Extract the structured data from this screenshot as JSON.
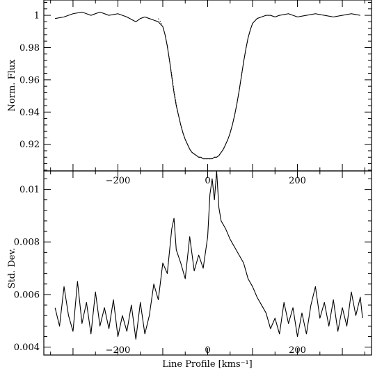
{
  "chart_data": [
    {
      "type": "line",
      "panel": "top",
      "ylabel": "Norm. Flux",
      "xlabel": "",
      "xlim": [
        -365,
        365
      ],
      "ylim": [
        0.9035,
        1.0095
      ],
      "x_ticks": [
        -200,
        0,
        200
      ],
      "x_tick_labels": [
        "−200",
        "0",
        "200"
      ],
      "y_ticks": [
        0.92,
        0.94,
        0.96,
        0.98,
        1.0
      ],
      "y_tick_labels": [
        "0.92",
        "0.94",
        "0.96",
        "0.98",
        "1"
      ],
      "grid": false,
      "legend": "none",
      "series": [
        {
          "style": "solid",
          "x": [
            -340,
            -320,
            -300,
            -280,
            -260,
            -240,
            -220,
            -200,
            -180,
            -160,
            -150,
            -140,
            -130,
            -120,
            -110,
            -100,
            -95,
            -90,
            -85,
            -80,
            -75,
            -70,
            -65,
            -60,
            -55,
            -50,
            -45,
            -40,
            -35,
            -30,
            -25,
            -20,
            -15,
            -10,
            -5,
            0,
            5,
            10,
            15,
            20,
            25,
            30,
            35,
            40,
            45,
            50,
            55,
            60,
            65,
            70,
            75,
            80,
            85,
            90,
            95,
            100,
            110,
            120,
            130,
            140,
            150,
            160,
            180,
            200,
            220,
            240,
            260,
            280,
            300,
            320,
            340
          ],
          "y": [
            0.998,
            0.999,
            1.001,
            1.002,
            1.0,
            1.002,
            1.0,
            1.001,
            0.999,
            0.996,
            0.998,
            0.999,
            0.998,
            0.997,
            0.996,
            0.993,
            0.988,
            0.981,
            0.972,
            0.962,
            0.952,
            0.944,
            0.938,
            0.932,
            0.927,
            0.923,
            0.92,
            0.917,
            0.915,
            0.914,
            0.913,
            0.912,
            0.912,
            0.911,
            0.911,
            0.911,
            0.911,
            0.911,
            0.912,
            0.912,
            0.913,
            0.915,
            0.917,
            0.92,
            0.923,
            0.927,
            0.932,
            0.938,
            0.945,
            0.953,
            0.962,
            0.971,
            0.979,
            0.986,
            0.991,
            0.995,
            0.998,
            0.999,
            1.0,
            1.0,
            0.999,
            1.0,
            1.001,
            0.999,
            1.0,
            1.001,
            1.0,
            0.999,
            1.0,
            1.001,
            1.0
          ]
        },
        {
          "style": "dotted",
          "x": [
            -110,
            -105,
            -100,
            -95,
            -90,
            -85,
            -80,
            -75,
            -70,
            -65,
            -60,
            -55,
            -50,
            -45,
            -40,
            -35,
            -30,
            -25,
            -20,
            -15,
            -10,
            -5,
            0,
            5,
            10,
            15,
            20,
            25,
            30,
            35,
            40,
            45,
            50,
            55,
            60,
            65,
            70,
            75,
            80,
            85,
            90,
            95,
            100
          ],
          "y": [
            0.998,
            0.996,
            0.993,
            0.988,
            0.981,
            0.972,
            0.963,
            0.953,
            0.945,
            0.938,
            0.932,
            0.927,
            0.923,
            0.92,
            0.917,
            0.915,
            0.914,
            0.913,
            0.912,
            0.912,
            0.911,
            0.911,
            0.911,
            0.911,
            0.911,
            0.912,
            0.912,
            0.913,
            0.915,
            0.917,
            0.92,
            0.923,
            0.927,
            0.932,
            0.938,
            0.945,
            0.953,
            0.962,
            0.971,
            0.979,
            0.986,
            0.991,
            0.995
          ]
        }
      ]
    },
    {
      "type": "line",
      "panel": "bottom",
      "ylabel": "Std. Dev.",
      "xlabel": "Line Profile [kms⁻¹]",
      "xlim": [
        -365,
        365
      ],
      "ylim": [
        0.0037,
        0.0107
      ],
      "x_ticks": [
        -200,
        0,
        200
      ],
      "x_tick_labels": [
        "−200",
        "0",
        "200"
      ],
      "y_ticks": [
        0.004,
        0.006,
        0.008,
        0.01
      ],
      "y_tick_labels": [
        "0.004",
        "0.006",
        "0.008",
        "0.01"
      ],
      "grid": false,
      "legend": "none",
      "series": [
        {
          "style": "solid",
          "x": [
            -340,
            -330,
            -320,
            -310,
            -300,
            -290,
            -280,
            -270,
            -260,
            -250,
            -240,
            -230,
            -220,
            -210,
            -200,
            -190,
            -180,
            -170,
            -160,
            -150,
            -140,
            -130,
            -120,
            -110,
            -100,
            -90,
            -80,
            -75,
            -70,
            -60,
            -50,
            -40,
            -30,
            -20,
            -10,
            0,
            5,
            10,
            15,
            20,
            25,
            30,
            40,
            50,
            60,
            70,
            80,
            90,
            100,
            110,
            120,
            130,
            140,
            150,
            160,
            170,
            180,
            190,
            200,
            210,
            220,
            230,
            240,
            250,
            260,
            270,
            280,
            290,
            300,
            310,
            320,
            330,
            340,
            345
          ],
          "y": [
            0.0055,
            0.0048,
            0.0063,
            0.0052,
            0.0046,
            0.0065,
            0.0049,
            0.0057,
            0.0045,
            0.0061,
            0.0048,
            0.0055,
            0.0047,
            0.0058,
            0.0044,
            0.0052,
            0.0046,
            0.0056,
            0.0043,
            0.0057,
            0.0045,
            0.0052,
            0.0064,
            0.0058,
            0.0072,
            0.0068,
            0.0085,
            0.0089,
            0.0077,
            0.0072,
            0.0066,
            0.0082,
            0.0069,
            0.0075,
            0.007,
            0.0082,
            0.0098,
            0.0104,
            0.0096,
            0.0107,
            0.0093,
            0.0088,
            0.0085,
            0.0081,
            0.0078,
            0.0075,
            0.0072,
            0.0066,
            0.0063,
            0.0059,
            0.0056,
            0.0053,
            0.0047,
            0.0051,
            0.0045,
            0.0057,
            0.0049,
            0.0055,
            0.0044,
            0.0053,
            0.0045,
            0.0056,
            0.0063,
            0.0051,
            0.0057,
            0.0048,
            0.0058,
            0.0046,
            0.0055,
            0.0048,
            0.0061,
            0.0052,
            0.0059,
            0.0051
          ]
        }
      ]
    }
  ]
}
